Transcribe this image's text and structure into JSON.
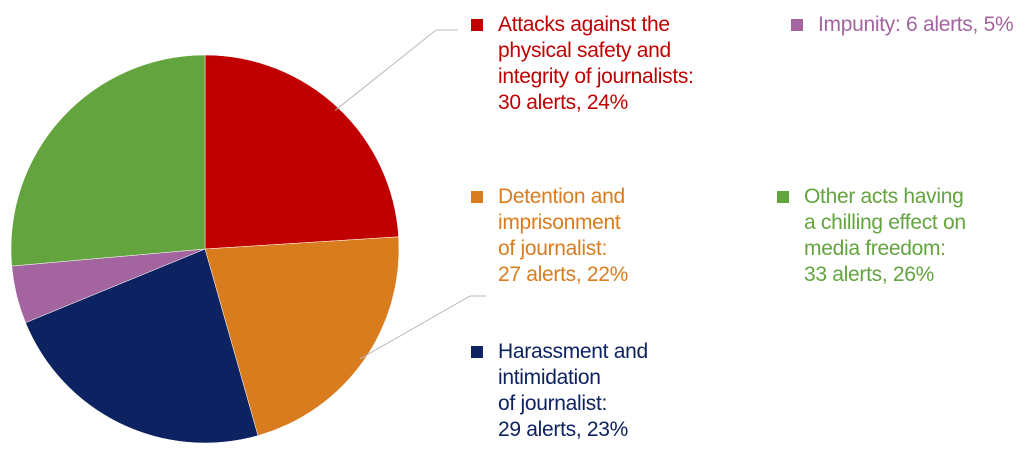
{
  "chart_data": {
    "type": "pie",
    "slices": [
      {
        "key": "attacks",
        "label_lines": [
          "Attacks against the",
          "physical safety and",
          "integrity of journalists:",
          "30 alerts, 24%"
        ],
        "alerts": 30,
        "percent": 24,
        "color": "#c00000"
      },
      {
        "key": "detention",
        "label_lines": [
          "Detention and",
          "imprisonment",
          "of journalist:",
          "27 alerts, 22%"
        ],
        "alerts": 27,
        "percent": 22,
        "color": "#d97c1e"
      },
      {
        "key": "harassment",
        "label_lines": [
          "Harassment and",
          "intimidation",
          "of journalist:",
          "29 alerts, 23%"
        ],
        "alerts": 29,
        "percent": 23,
        "color": "#0d2260"
      },
      {
        "key": "impunity",
        "label_lines": [
          "Impunity: 6 alerts, 5%"
        ],
        "alerts": 6,
        "percent": 5,
        "color": "#a3649f"
      },
      {
        "key": "other",
        "label_lines": [
          "Other acts having",
          "a chilling effect on",
          "media freedom:",
          "33 alerts, 26%"
        ],
        "alerts": 33,
        "percent": 26,
        "color": "#63a43f"
      }
    ],
    "legend": "right",
    "leader_line_color": "#b8b8b8"
  }
}
